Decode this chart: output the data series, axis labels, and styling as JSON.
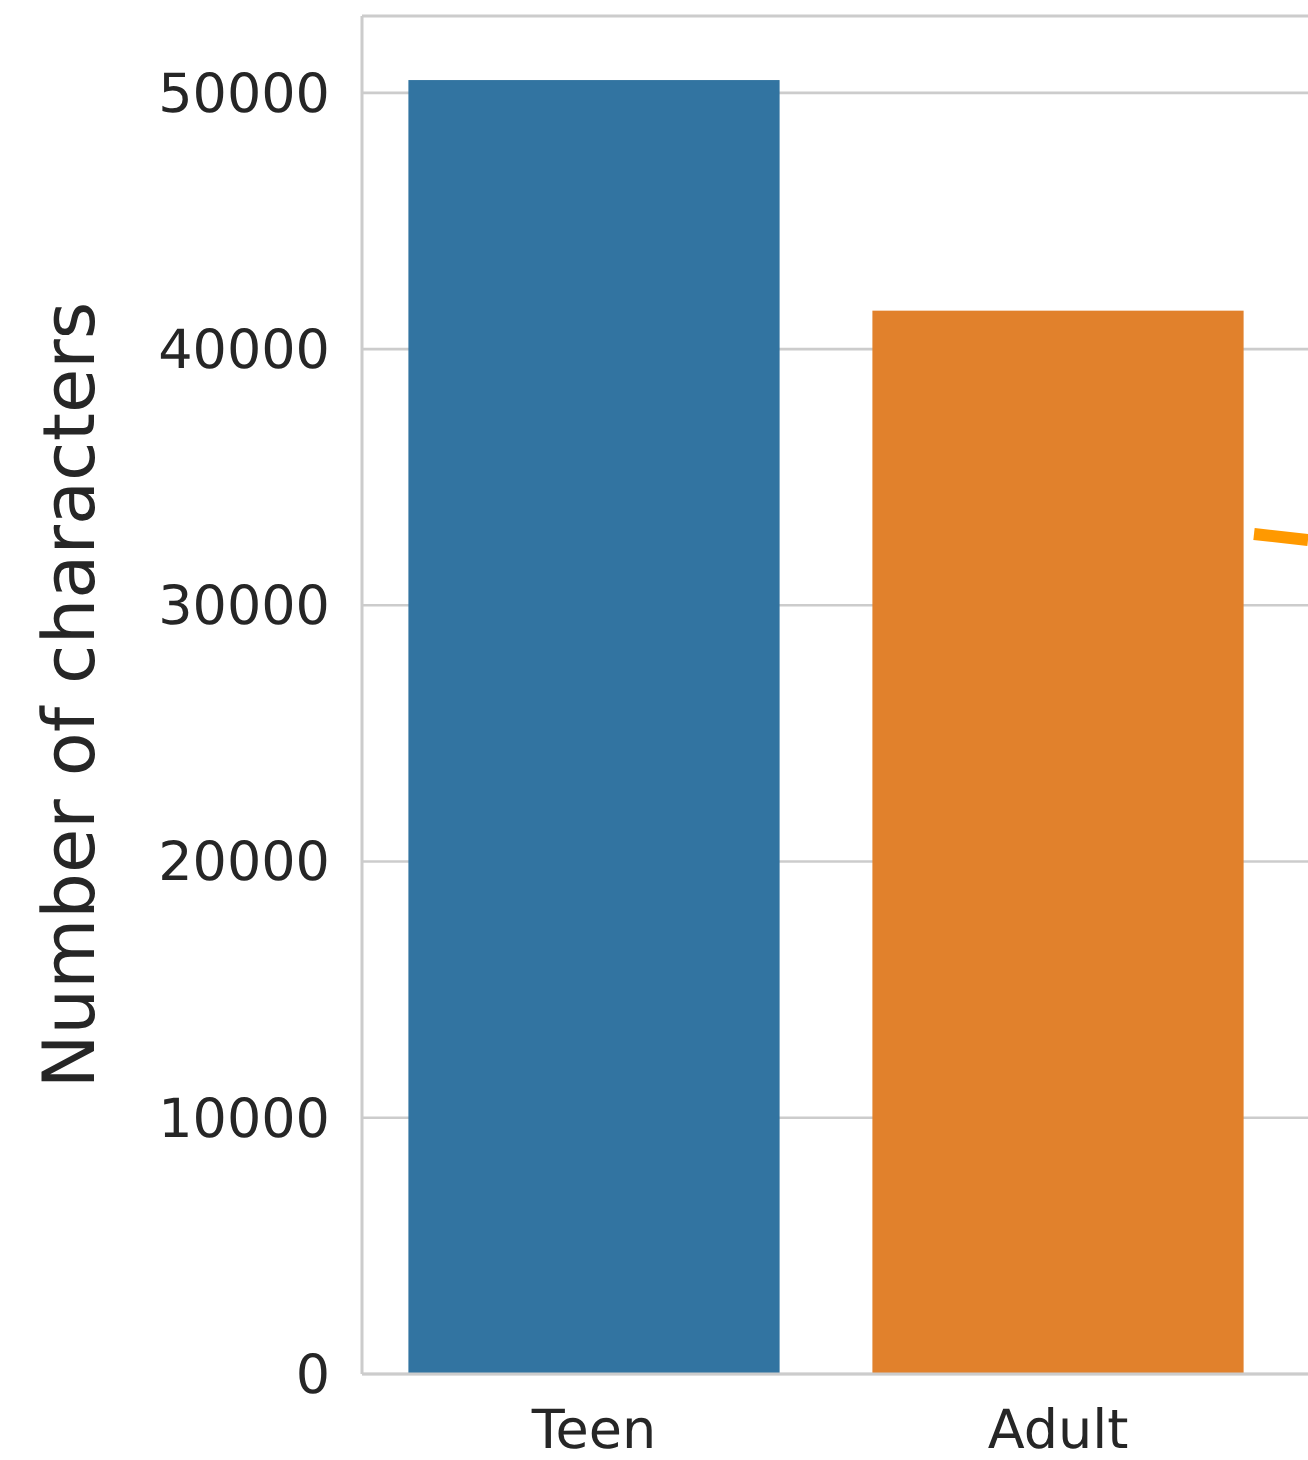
{
  "chart_data": {
    "type": "bar",
    "ylabel": "Number of characters",
    "categories": [
      "Teen",
      "Adult"
    ],
    "values": [
      50500,
      41500
    ],
    "colors": [
      "#3274a1",
      "#e1812c"
    ],
    "ylim": [
      0,
      53000
    ],
    "yticks": [
      0,
      10000,
      20000,
      30000,
      40000,
      50000
    ],
    "grid": "y"
  }
}
